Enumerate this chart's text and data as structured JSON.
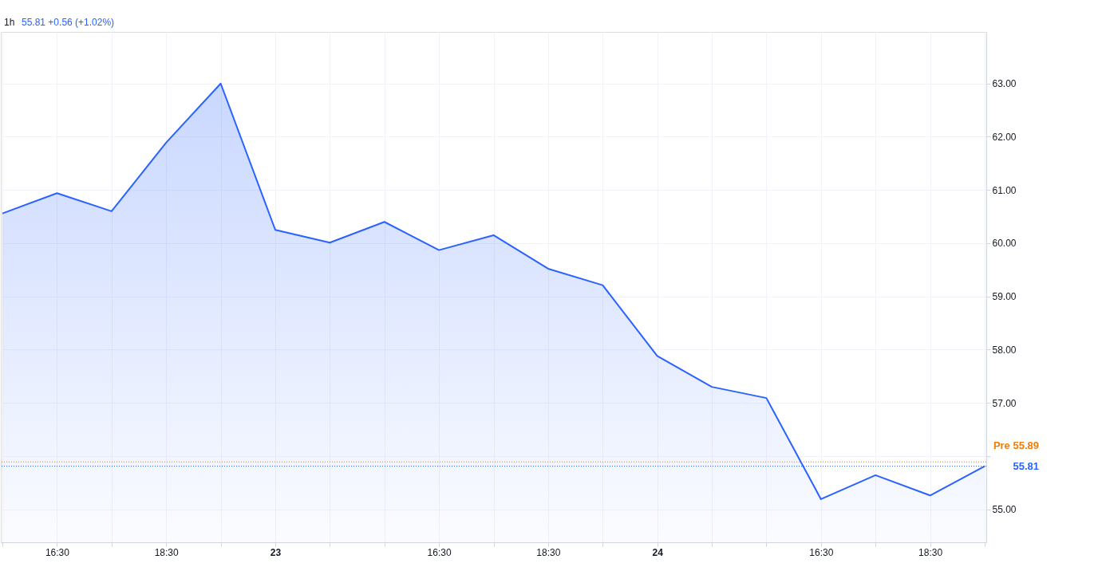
{
  "chart_data": {
    "type": "area",
    "title": "1h",
    "subtitle": "55.81 +0.56 (+1.02%)",
    "categories": [
      null,
      "16:30",
      null,
      "18:30",
      null,
      "23",
      null,
      null,
      "16:30",
      null,
      "18:30",
      null,
      "24",
      null,
      null,
      "16:30",
      null,
      "18:30",
      null
    ],
    "series": [
      {
        "color": "#2962ff",
        "values": [
          60.56,
          60.94,
          60.6,
          61.89,
          63.0,
          60.25,
          60.01,
          60.4,
          59.87,
          60.15,
          59.52,
          59.21,
          57.88,
          57.3,
          57.09,
          55.19,
          55.64,
          55.26,
          55.81
        ]
      }
    ],
    "ylim": [
      54.38,
      63.97
    ],
    "yticks": [
      {
        "value": 55,
        "label": "55.00"
      },
      {
        "value": 56,
        "label": null
      },
      {
        "value": 57,
        "label": "57.00"
      },
      {
        "value": 58,
        "label": "58.00"
      },
      {
        "value": 59,
        "label": "59.00"
      },
      {
        "value": 60,
        "label": "60.00"
      },
      {
        "value": 61,
        "label": "61.00"
      },
      {
        "value": 62,
        "label": "62.00"
      },
      {
        "value": 63,
        "label": "63.00"
      }
    ],
    "ref_lines": [
      {
        "axis": "y",
        "value": 55.89,
        "label": "Pre   55.89",
        "color": "#f57c00",
        "line_style": "dotted"
      },
      {
        "axis": "y",
        "value": 55.81,
        "label": "55.81",
        "color": "#2962ff",
        "line_style": "dotted"
      }
    ],
    "grid": true
  }
}
